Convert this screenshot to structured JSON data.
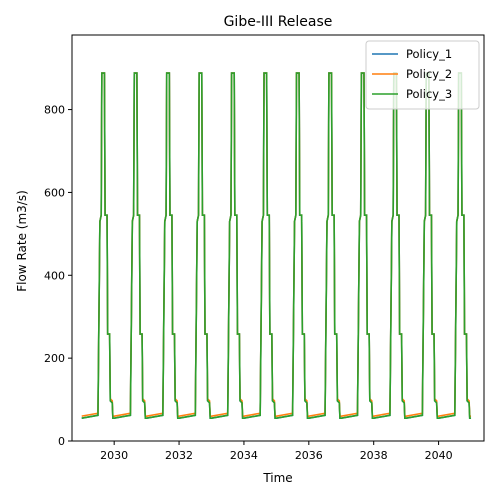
{
  "chart_data": {
    "type": "line",
    "title": "Gibe-III Release",
    "xlabel": "Time",
    "ylabel": "Flow Rate (m3/s)",
    "xlim": [
      2028.7,
      2041.4
    ],
    "ylim": [
      0,
      980
    ],
    "x_ticks": [
      2030,
      2032,
      2034,
      2036,
      2038,
      2040
    ],
    "y_ticks": [
      0,
      200,
      400,
      600,
      800
    ],
    "legend_position": "top-right",
    "grid": false,
    "x_start": 2029.0,
    "x_end": 2041.0,
    "annual_release_pattern": {
      "description_points": [
        {
          "phase": 0.0,
          "value": 55
        },
        {
          "phase": 0.5,
          "value": 62
        },
        {
          "phase": 0.56,
          "value": 530
        },
        {
          "phase": 0.6,
          "value": 545
        },
        {
          "phase": 0.62,
          "value": 888
        },
        {
          "phase": 0.7,
          "value": 888
        },
        {
          "phase": 0.72,
          "value": 545
        },
        {
          "phase": 0.78,
          "value": 545
        },
        {
          "phase": 0.8,
          "value": 258
        },
        {
          "phase": 0.86,
          "value": 258
        },
        {
          "phase": 0.88,
          "value": 97
        },
        {
          "phase": 0.94,
          "value": 92
        },
        {
          "phase": 0.96,
          "value": 55
        }
      ]
    },
    "series": [
      {
        "name": "Policy_1",
        "color": "#1f77b4",
        "baseline_offset": 0
      },
      {
        "name": " Policy_2",
        "color": "#ff7f0e",
        "baseline_offset": 5
      },
      {
        "name": " Policy_3",
        "color": "#2ca02c",
        "baseline_offset": 0
      }
    ]
  }
}
